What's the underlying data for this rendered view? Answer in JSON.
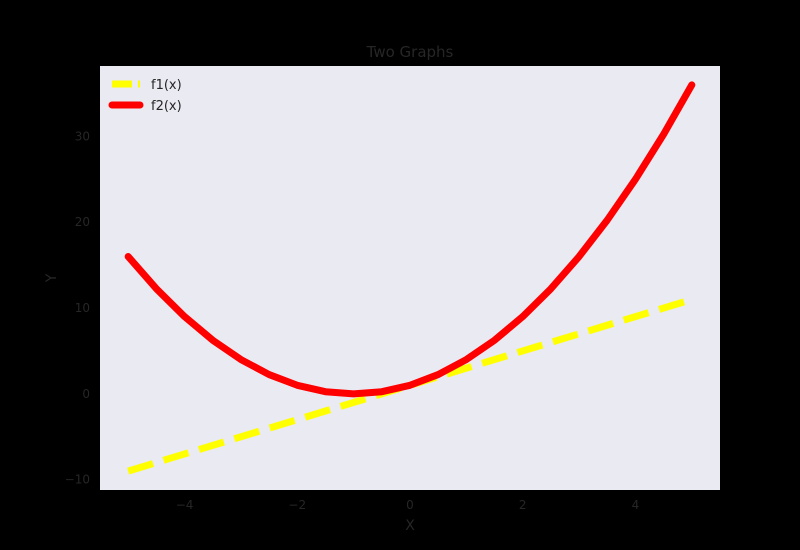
{
  "chart_data": {
    "type": "line",
    "title": "Two Graphs",
    "xlabel": "X",
    "ylabel": "Y",
    "xlim": [
      -5.5,
      5.5
    ],
    "ylim": [
      -11.2,
      38.2
    ],
    "xticks": [
      {
        "value": -4,
        "label": "−4"
      },
      {
        "value": -2,
        "label": "−2"
      },
      {
        "value": 0,
        "label": "0"
      },
      {
        "value": 2,
        "label": "2"
      },
      {
        "value": 4,
        "label": "4"
      }
    ],
    "yticks": [
      {
        "value": -10,
        "label": "−10"
      },
      {
        "value": 0,
        "label": "0"
      },
      {
        "value": 10,
        "label": "10"
      },
      {
        "value": 20,
        "label": "20"
      },
      {
        "value": 30,
        "label": "30"
      }
    ],
    "grid": false,
    "legend_position": "top-left",
    "background_color": "#eaeaf2",
    "series": [
      {
        "name": "f1(x)",
        "color": "#ffff00",
        "style": "dashed",
        "x": [
          -5,
          -4,
          -3,
          -2,
          -1,
          0,
          1,
          2,
          3,
          4,
          5
        ],
        "y": [
          -9,
          -7,
          -5,
          -3,
          -1,
          1,
          3,
          5,
          7,
          9,
          11
        ]
      },
      {
        "name": "f2(x)",
        "color": "#ff0000",
        "style": "solid",
        "x": [
          -5,
          -4.5,
          -4,
          -3.5,
          -3,
          -2.5,
          -2,
          -1.5,
          -1,
          -0.5,
          0,
          0.5,
          1,
          1.5,
          2,
          2.5,
          3,
          3.5,
          4,
          4.5,
          5
        ],
        "y": [
          16,
          12.25,
          9,
          6.25,
          4,
          2.25,
          1,
          0.25,
          0,
          0.25,
          1,
          2.25,
          4,
          6.25,
          9,
          12.25,
          16,
          20.25,
          25,
          30.25,
          36
        ]
      }
    ]
  }
}
